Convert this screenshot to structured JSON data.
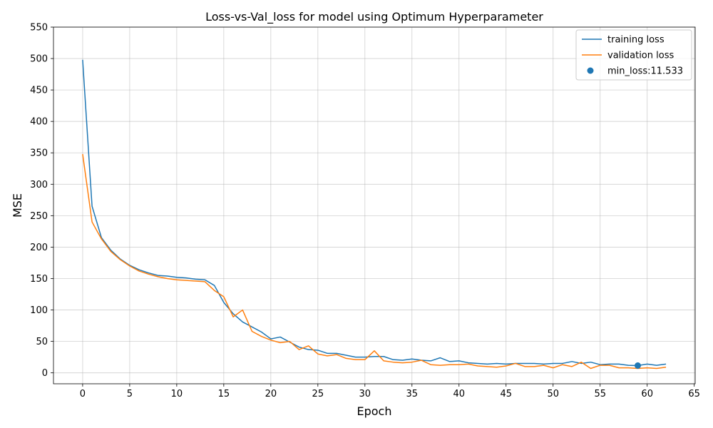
{
  "chart_data": {
    "type": "line",
    "title": "Loss-vs-Val_loss for model using Optimum Hyperparameter",
    "xlabel": "Epoch",
    "ylabel": "MSE",
    "xlim": [
      -3.1,
      65.1
    ],
    "ylim": [
      -17.4,
      550
    ],
    "xticks": [
      0,
      5,
      10,
      15,
      20,
      25,
      30,
      35,
      40,
      45,
      50,
      55,
      60,
      65
    ],
    "yticks": [
      0,
      50,
      100,
      150,
      200,
      250,
      300,
      350,
      400,
      450,
      500,
      550
    ],
    "grid": true,
    "legend_position": "top-right",
    "colors": {
      "training": "#1f77b4",
      "validation": "#ff7f0e",
      "marker": "#1f77b4"
    },
    "x": [
      0,
      1,
      2,
      3,
      4,
      5,
      6,
      7,
      8,
      9,
      10,
      11,
      12,
      13,
      14,
      15,
      16,
      17,
      18,
      19,
      20,
      21,
      22,
      23,
      24,
      25,
      26,
      27,
      28,
      29,
      30,
      31,
      32,
      33,
      34,
      35,
      36,
      37,
      38,
      39,
      40,
      41,
      42,
      43,
      44,
      45,
      46,
      47,
      48,
      49,
      50,
      51,
      52,
      53,
      54,
      55,
      56,
      57,
      58,
      59,
      60,
      61,
      62
    ],
    "series": [
      {
        "name": "training loss",
        "values": [
          498,
          265,
          215,
          195,
          181,
          171,
          164,
          159,
          155,
          154,
          152,
          151,
          149,
          148,
          139,
          112,
          94,
          81,
          73,
          65,
          54,
          57,
          49,
          41,
          37,
          36,
          31,
          31,
          28,
          25,
          25,
          26,
          26,
          21,
          20,
          22,
          20,
          19,
          24,
          18,
          19,
          16,
          15,
          14,
          15,
          14,
          15,
          15,
          15,
          14,
          15,
          15,
          18,
          15,
          17,
          13,
          14,
          14,
          12,
          11.5,
          14,
          12,
          14
        ]
      },
      {
        "name": "validation loss",
        "values": [
          348,
          240,
          213,
          193,
          180,
          170,
          162,
          157,
          153,
          150,
          148,
          147,
          146,
          145,
          131,
          121,
          89,
          100,
          66,
          58,
          52,
          48,
          50,
          37,
          43,
          30,
          27,
          29,
          23,
          21,
          21,
          35,
          19,
          17,
          16,
          17,
          20,
          13,
          12,
          13,
          13,
          14,
          11,
          10,
          9,
          11,
          15,
          10,
          10,
          12,
          8,
          13,
          10,
          17,
          7,
          12,
          12,
          8,
          8,
          7,
          8,
          7,
          9
        ]
      }
    ],
    "marker": {
      "label": "min_loss:11.533",
      "x": 59,
      "y": 11.533
    }
  }
}
